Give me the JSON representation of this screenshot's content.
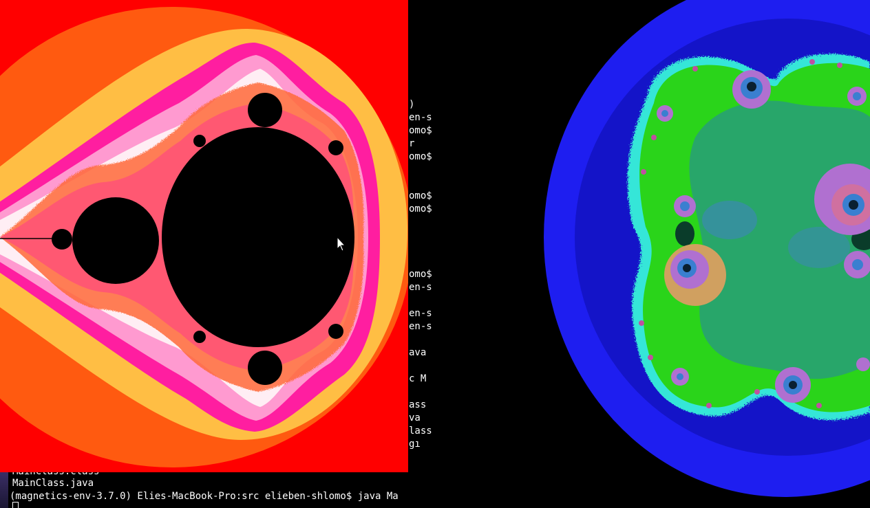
{
  "terminal": {
    "fragments": [
      ")",
      "en-s",
      "omo$",
      "r",
      "omo$",
      "",
      "omo$",
      "omo$",
      "",
      "",
      "",
      "",
      "omo$",
      "en-s",
      "",
      "en-s",
      "en-s",
      "",
      "ava",
      "",
      "c M",
      "",
      "ass",
      "va",
      "lass",
      " gı"
    ],
    "lines": {
      "partial": "MainClass.class",
      "file": "MainClass.java",
      "prompt": "(magnetics-env-3.7.0) Elies-MacBook-Pro:src elieben-shlomo$ java Ma"
    }
  },
  "mandelbrot_window": {
    "colors": {
      "outer": "#ff0000",
      "band_orange": "#ff5a10",
      "band_yellow": "#ffbe44",
      "band_pink": "#ff1ea0",
      "band_light_pink": "#ff9ad0",
      "band_white": "#ffeef4",
      "set": "#000000"
    },
    "mouse_cursor": "arrow-cursor-icon"
  },
  "julia_window": {
    "colors": {
      "outer_blue": "#1e1ef0",
      "inner_blue": "#1414c8",
      "bright_green": "#2ad41a",
      "teal_green": "#28a66a",
      "cyan": "#34e6d8",
      "purple": "#b070d0",
      "steel_blue": "#3a7fd0",
      "dark_center": "#0a3c2a"
    }
  }
}
